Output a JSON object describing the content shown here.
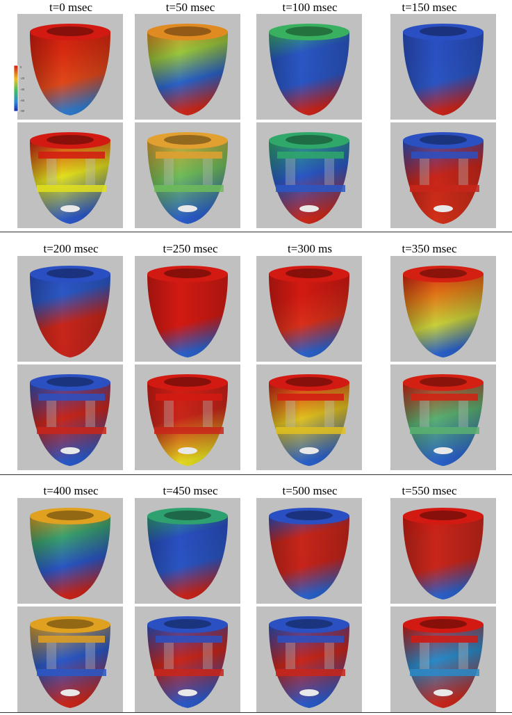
{
  "time_points": [
    "t=0 msec",
    "t=50 msec",
    "t=100 msec",
    "t=150 msec",
    "t=200 msec",
    "t=250 msec",
    "t=300 ms",
    "t=350 msec",
    "t=400 msec",
    "t=450 msec",
    "t=500 msec",
    "t=550 msec"
  ],
  "frames": [
    {
      "outer": [
        "#d21a12",
        "#d82c10",
        "#e0481a",
        "#2f78c8"
      ],
      "inner": [
        "#d21a12",
        "#e2e01e",
        "#2b56c5"
      ]
    },
    {
      "outer": [
        "#e08a22",
        "#9ac63c",
        "#2a62c8",
        "#c8281a"
      ],
      "inner": [
        "#e2a030",
        "#6fbc5a",
        "#2a5bc8"
      ]
    },
    {
      "outer": [
        "#38b060",
        "#2a57c4",
        "#2a55c3",
        "#c6241a"
      ],
      "inner": [
        "#2fa86a",
        "#2a57c4",
        "#c8281a"
      ]
    },
    {
      "outer": [
        "#2a4fc2",
        "#2a50c2",
        "#2b55c3",
        "#c6241a"
      ],
      "inner": [
        "#2a50c2",
        "#c8261a",
        "#d03018"
      ]
    },
    {
      "outer": [
        "#2a4fc2",
        "#2b58c4",
        "#c8261a",
        "#c6241a"
      ],
      "inner": [
        "#2a50c2",
        "#c8261a",
        "#2a58c6"
      ]
    },
    {
      "outer": [
        "#d21a12",
        "#d21a12",
        "#d21a12",
        "#2a60c8"
      ],
      "inner": [
        "#d21a12",
        "#c8261a",
        "#e2d820"
      ]
    },
    {
      "outer": [
        "#d21a12",
        "#d21a12",
        "#d8301a",
        "#2a60c8"
      ],
      "inner": [
        "#d21a12",
        "#e0c020",
        "#2a60c8"
      ]
    },
    {
      "outer": [
        "#d42012",
        "#e07818",
        "#c8d03a",
        "#2a60c8"
      ],
      "inner": [
        "#d42012",
        "#5ab070",
        "#2a60c8"
      ]
    },
    {
      "outer": [
        "#e0a020",
        "#3aa070",
        "#2a55c3",
        "#c6241a"
      ],
      "inner": [
        "#e0a020",
        "#2a58c6",
        "#c8261a"
      ]
    },
    {
      "outer": [
        "#2fa070",
        "#2a4fc2",
        "#2a55c3",
        "#c6241a"
      ],
      "inner": [
        "#2a50c2",
        "#c8261a",
        "#2a58c6"
      ]
    },
    {
      "outer": [
        "#2a4fc2",
        "#c8261a",
        "#c6241a",
        "#2a60c8"
      ],
      "inner": [
        "#2a50c2",
        "#c8261a",
        "#2a58c6"
      ]
    },
    {
      "outer": [
        "#d21a12",
        "#c8261a",
        "#c8261a",
        "#2a60c8"
      ],
      "inner": [
        "#d21a12",
        "#2a8ac8",
        "#c8261a"
      ]
    }
  ],
  "colorbar": {
    "ticks": [
      "0",
      "-20",
      "-40",
      "-60",
      "-80"
    ],
    "colors": [
      "#d21a12",
      "#f0c020",
      "#3ec060",
      "#2a88d8",
      "#1a2aa8"
    ]
  }
}
